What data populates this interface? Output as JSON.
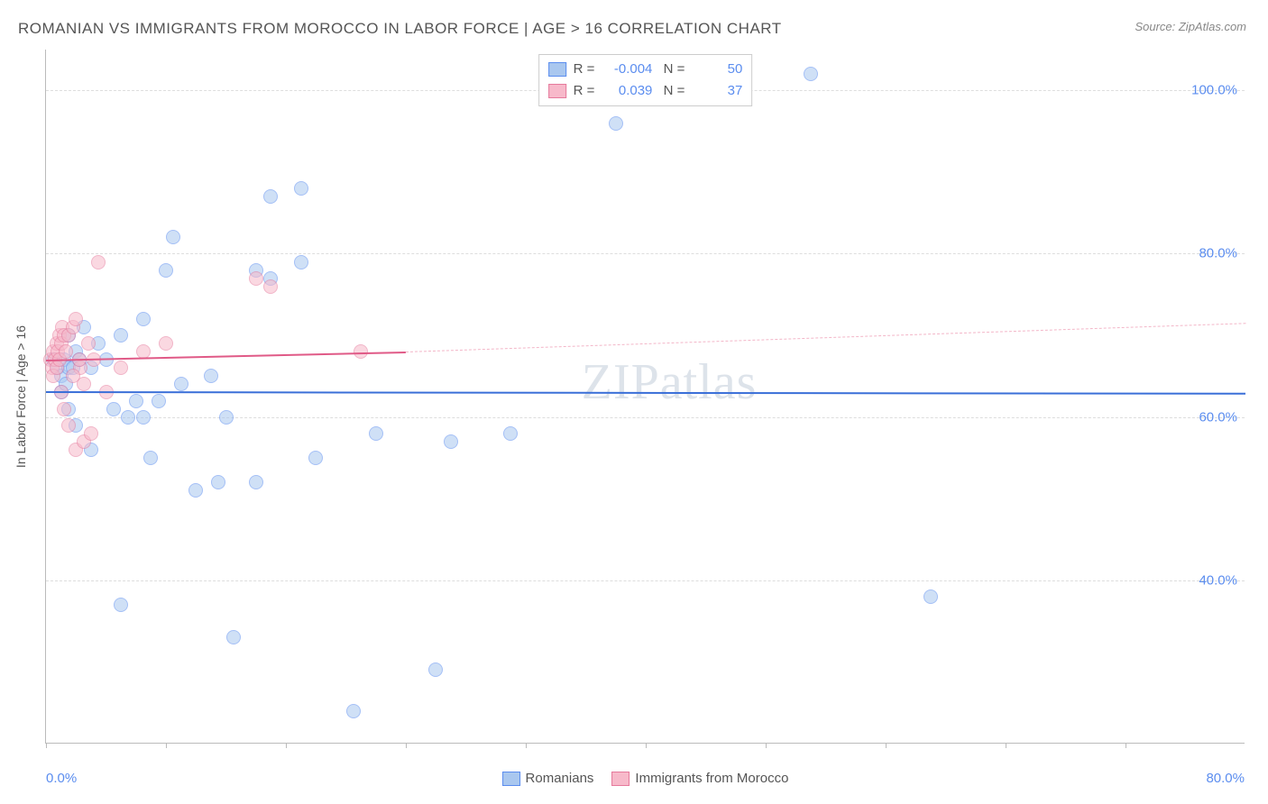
{
  "title": "ROMANIAN VS IMMIGRANTS FROM MOROCCO IN LABOR FORCE | AGE > 16 CORRELATION CHART",
  "source": "Source: ZipAtlas.com",
  "watermark": "ZIPatlas",
  "chart": {
    "type": "scatter",
    "y_axis_title": "In Labor Force | Age > 16",
    "xlim": [
      0,
      80
    ],
    "ylim": [
      20,
      105
    ],
    "x_origin_label": "0.0%",
    "x_max_label": "80.0%",
    "y_ticks": [
      {
        "value": 40,
        "label": "40.0%"
      },
      {
        "value": 60,
        "label": "60.0%"
      },
      {
        "value": 80,
        "label": "80.0%"
      },
      {
        "value": 100,
        "label": "100.0%"
      }
    ],
    "x_tick_positions": [
      0,
      8,
      16,
      24,
      32,
      40,
      48,
      56,
      64,
      72
    ],
    "background_color": "#ffffff",
    "grid_color": "#dddddd",
    "axis_color": "#bbbbbb",
    "tick_label_color": "#5b8def",
    "marker_radius": 8,
    "marker_stroke_width": 1.5,
    "series": [
      {
        "name": "Romanians",
        "fill": "#a9c7ef",
        "stroke": "#5b8def",
        "fill_opacity": 0.55,
        "R": "-0.004",
        "N": "50",
        "trend": {
          "x1": 0,
          "y1": 63.2,
          "x2": 80,
          "y2": 63.0,
          "color": "#3a6fd8",
          "width": 2.5,
          "dash": false
        },
        "points": [
          [
            0.5,
            67
          ],
          [
            0.8,
            66
          ],
          [
            1.0,
            65
          ],
          [
            1.2,
            67
          ],
          [
            1.5,
            66
          ],
          [
            1.0,
            63
          ],
          [
            1.3,
            64
          ],
          [
            1.8,
            66
          ],
          [
            2.0,
            68
          ],
          [
            2.2,
            67
          ],
          [
            1.5,
            70
          ],
          [
            2.5,
            71
          ],
          [
            3.0,
            66
          ],
          [
            3.5,
            69
          ],
          [
            4.0,
            67
          ],
          [
            5.0,
            70
          ],
          [
            6.5,
            72
          ],
          [
            8.0,
            78
          ],
          [
            8.5,
            82
          ],
          [
            6.0,
            62
          ],
          [
            4.5,
            61
          ],
          [
            5.5,
            60
          ],
          [
            6.5,
            60
          ],
          [
            7.5,
            62
          ],
          [
            9.0,
            64
          ],
          [
            11.0,
            65
          ],
          [
            12.0,
            60
          ],
          [
            14.0,
            78
          ],
          [
            15.0,
            77
          ],
          [
            17.0,
            79
          ],
          [
            10.0,
            51
          ],
          [
            11.5,
            52
          ],
          [
            14.0,
            52
          ],
          [
            18.0,
            55
          ],
          [
            20.5,
            24
          ],
          [
            22.0,
            58
          ],
          [
            27.0,
            57
          ],
          [
            31.0,
            58
          ],
          [
            26.0,
            29
          ],
          [
            5.0,
            37
          ],
          [
            12.5,
            33
          ],
          [
            15.0,
            87
          ],
          [
            17.0,
            88
          ],
          [
            38.0,
            96
          ],
          [
            51.0,
            102
          ],
          [
            59.0,
            38
          ],
          [
            7.0,
            55
          ],
          [
            3.0,
            56
          ],
          [
            2.0,
            59
          ],
          [
            1.5,
            61
          ]
        ]
      },
      {
        "name": "Immigrants from Morocco",
        "fill": "#f7b9ca",
        "stroke": "#e67a9c",
        "fill_opacity": 0.55,
        "R": "0.039",
        "N": "37",
        "trend_solid": {
          "x1": 0,
          "y1": 67.0,
          "x2": 24,
          "y2": 68.0,
          "color": "#e05a87",
          "width": 2.5
        },
        "trend_dash": {
          "x1": 24,
          "y1": 68.0,
          "x2": 80,
          "y2": 71.5,
          "color": "#f3b6c8",
          "width": 1.5
        },
        "points": [
          [
            0.3,
            67
          ],
          [
            0.5,
            68
          ],
          [
            0.7,
            69
          ],
          [
            0.9,
            70
          ],
          [
            1.1,
            71
          ],
          [
            0.4,
            66
          ],
          [
            0.6,
            67
          ],
          [
            0.8,
            68
          ],
          [
            1.0,
            69
          ],
          [
            1.2,
            70
          ],
          [
            0.5,
            65
          ],
          [
            0.7,
            66
          ],
          [
            0.9,
            67
          ],
          [
            1.3,
            68
          ],
          [
            1.5,
            70
          ],
          [
            1.8,
            71
          ],
          [
            2.0,
            72
          ],
          [
            2.3,
            66
          ],
          [
            2.5,
            64
          ],
          [
            1.0,
            63
          ],
          [
            1.2,
            61
          ],
          [
            1.5,
            59
          ],
          [
            2.0,
            56
          ],
          [
            2.5,
            57
          ],
          [
            3.0,
            58
          ],
          [
            3.5,
            79
          ],
          [
            5.0,
            66
          ],
          [
            6.5,
            68
          ],
          [
            8.0,
            69
          ],
          [
            14.0,
            77
          ],
          [
            15.0,
            76
          ],
          [
            21.0,
            68
          ],
          [
            1.8,
            65
          ],
          [
            2.2,
            67
          ],
          [
            2.8,
            69
          ],
          [
            3.2,
            67
          ],
          [
            4.0,
            63
          ]
        ]
      }
    ],
    "legend_bottom": [
      {
        "label": "Romanians",
        "fill": "#a9c7ef",
        "stroke": "#5b8def"
      },
      {
        "label": "Immigrants from Morocco",
        "fill": "#f7b9ca",
        "stroke": "#e67a9c"
      }
    ]
  }
}
